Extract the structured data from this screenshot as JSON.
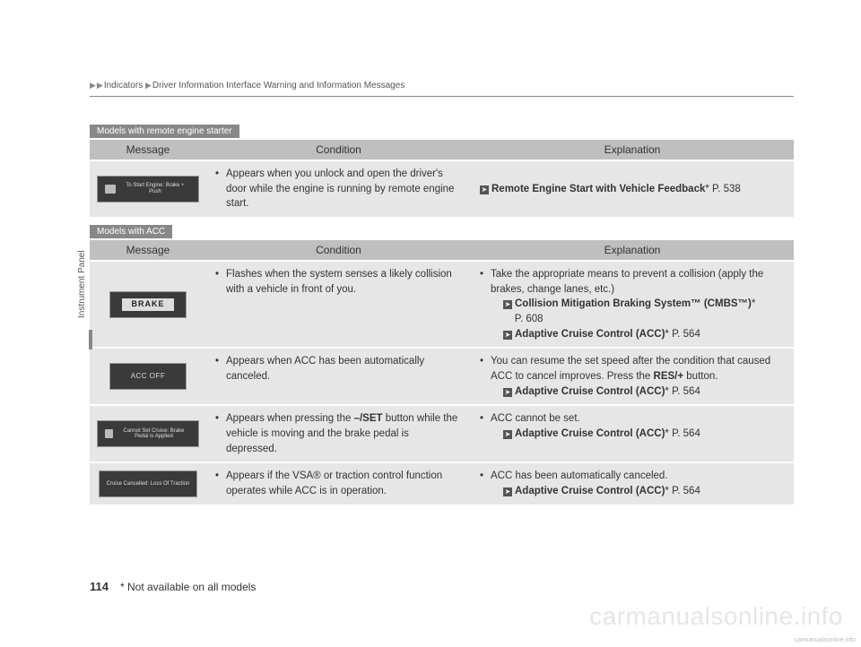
{
  "header": {
    "path": [
      "Indicators",
      "Driver Information Interface Warning and Information Messages"
    ]
  },
  "sideTab": "Instrument Panel",
  "sections": [
    {
      "label": "Models with remote engine starter",
      "headers": {
        "message": "Message",
        "condition": "Condition",
        "explanation": "Explanation"
      },
      "rows": [
        {
          "messageType": "remote-start",
          "messageText": "To Start Engine:\nBrake + Push",
          "condition": "Appears when you unlock and open the driver's door while the engine is running by remote engine start.",
          "explanation": [
            {
              "type": "ref",
              "bold": "Remote Engine Start with Vehicle Feedback",
              "asterisk": true,
              "page": "P. 538"
            }
          ]
        }
      ]
    },
    {
      "label": "Models with ACC",
      "headers": {
        "message": "Message",
        "condition": "Condition",
        "explanation": "Explanation"
      },
      "rows": [
        {
          "messageType": "brake",
          "messageText": "BRAKE",
          "condition": "Flashes when the system senses a likely collision with a vehicle in front of you.",
          "explanation": [
            {
              "type": "text",
              "text": "Take the appropriate means to prevent a collision (apply the brakes, change lanes, etc.)"
            },
            {
              "type": "ref",
              "bold": "Collision Mitigation Braking System™ (CMBS™)",
              "asterisk": true,
              "page": "P. 608"
            },
            {
              "type": "ref",
              "bold": "Adaptive Cruise Control (ACC)",
              "asterisk": true,
              "page": "P. 564"
            }
          ]
        },
        {
          "messageType": "accoff",
          "messageText": "ACC OFF",
          "conditionHtml": "Appears when ACC has been automatically canceled.",
          "explanation": [
            {
              "type": "htmltext",
              "html": "You can resume the set speed after the condition that caused ACC to cancel improves. Press the <b>RES/+</b> button."
            },
            {
              "type": "ref",
              "bold": "Adaptive Cruise Control (ACC)",
              "asterisk": true,
              "page": "P. 564"
            }
          ]
        },
        {
          "messageType": "cannot-set",
          "messageText": "Cannot Set Cruise:\nBrake Pedal is Applied",
          "conditionHtml": "Appears when pressing the <b>–/SET</b> button while the vehicle is moving and the brake pedal is depressed.",
          "explanation": [
            {
              "type": "text",
              "text": "ACC cannot be set."
            },
            {
              "type": "ref",
              "bold": "Adaptive Cruise Control (ACC)",
              "asterisk": true,
              "page": "P. 564"
            }
          ]
        },
        {
          "messageType": "cruise-canceled",
          "messageText": "Cruise Cancelled:\nLoss Of Traction",
          "conditionHtml": "Appears if the VSA® or traction control function operates while ACC is in operation.",
          "explanation": [
            {
              "type": "text",
              "text": "ACC has been automatically canceled."
            },
            {
              "type": "ref",
              "bold": "Adaptive Cruise Control (ACC)",
              "asterisk": true,
              "page": "P. 564"
            }
          ]
        }
      ]
    }
  ],
  "pageNumber": "114",
  "footnote": "* Not available on all models",
  "watermark": "carmanualsonline.info",
  "watermarkSmall": "carmanualsonline.info"
}
